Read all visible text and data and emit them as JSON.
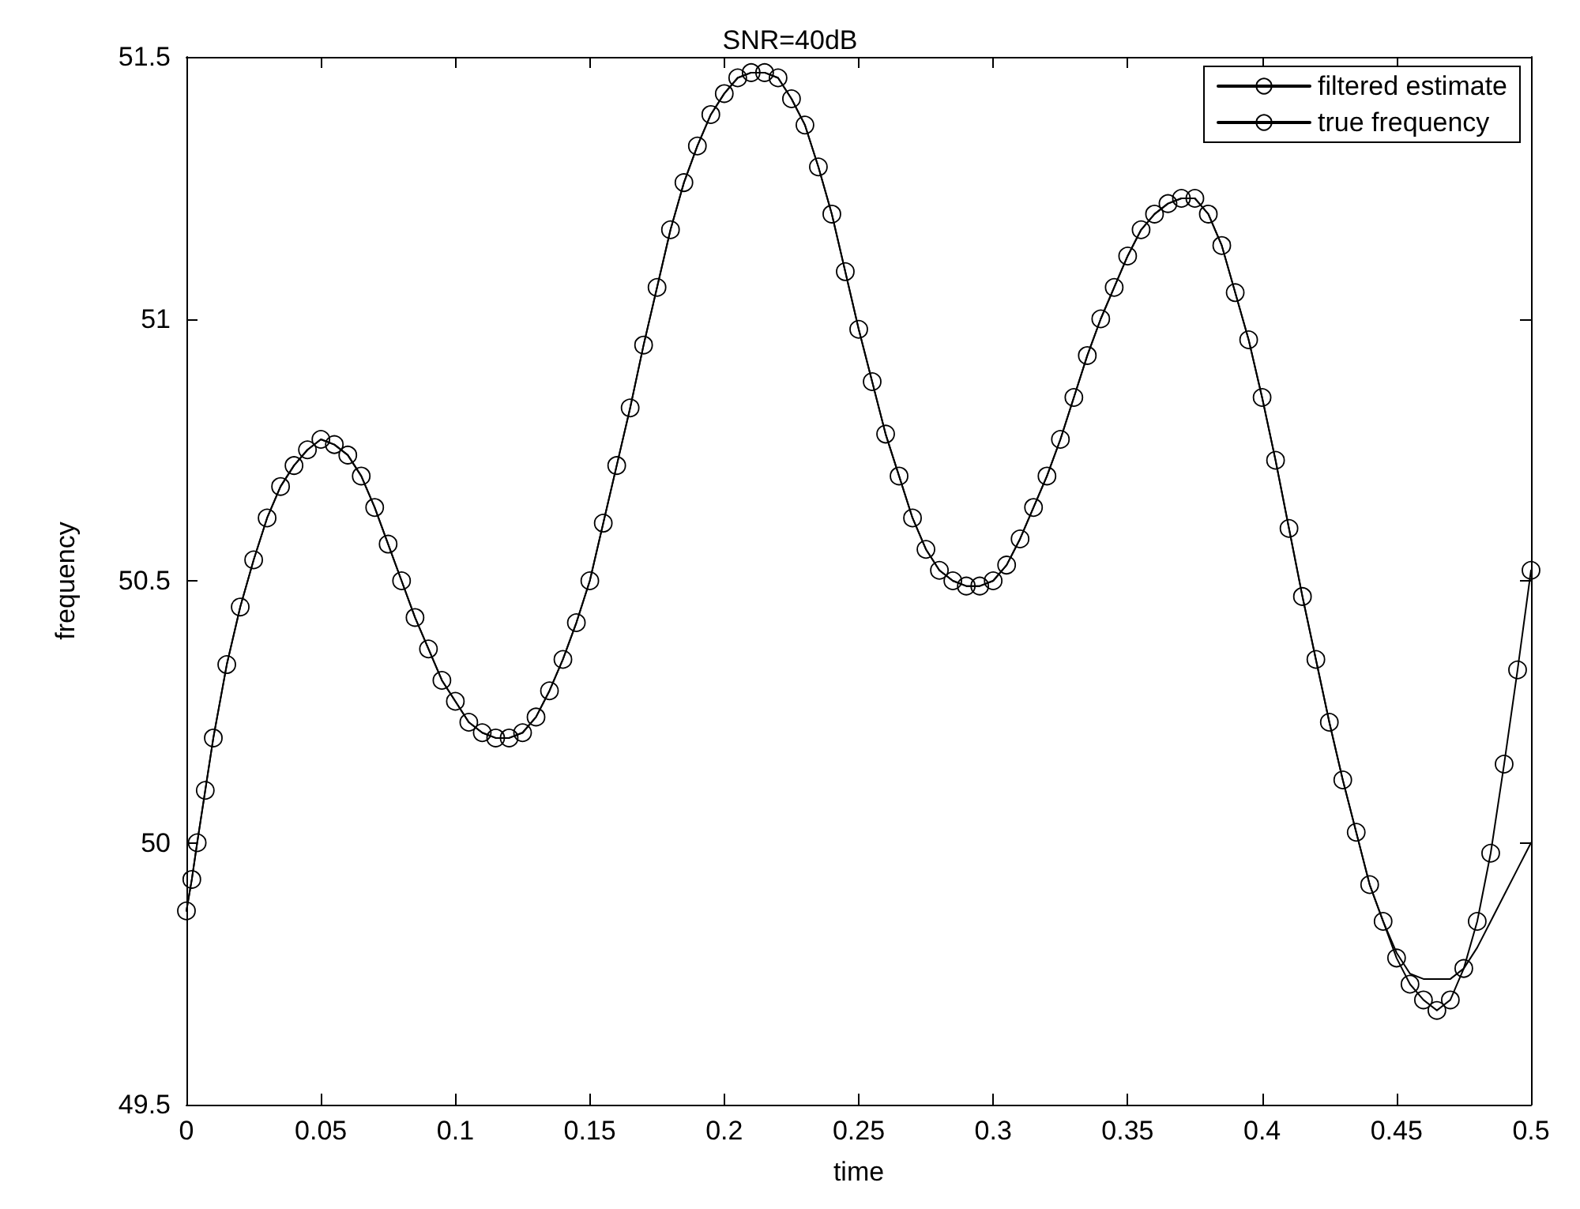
{
  "chart_data": {
    "type": "line",
    "title": "SNR=40dB",
    "xlabel": "time",
    "ylabel": "frequency",
    "x": [
      0,
      0.002,
      0.004,
      0.007,
      0.01,
      0.015,
      0.02,
      0.025,
      0.03,
      0.035,
      0.04,
      0.045,
      0.05,
      0.055,
      0.06,
      0.065,
      0.07,
      0.075,
      0.08,
      0.085,
      0.09,
      0.095,
      0.1,
      0.105,
      0.11,
      0.115,
      0.12,
      0.125,
      0.13,
      0.135,
      0.14,
      0.145,
      0.15,
      0.155,
      0.16,
      0.165,
      0.17,
      0.175,
      0.18,
      0.185,
      0.19,
      0.195,
      0.2,
      0.205,
      0.21,
      0.215,
      0.22,
      0.225,
      0.23,
      0.235,
      0.24,
      0.245,
      0.25,
      0.255,
      0.26,
      0.265,
      0.27,
      0.275,
      0.28,
      0.285,
      0.29,
      0.295,
      0.3,
      0.305,
      0.31,
      0.315,
      0.32,
      0.325,
      0.33,
      0.335,
      0.34,
      0.345,
      0.35,
      0.355,
      0.36,
      0.365,
      0.37,
      0.375,
      0.38,
      0.385,
      0.39,
      0.395,
      0.4,
      0.405,
      0.41,
      0.415,
      0.42,
      0.425,
      0.43,
      0.435,
      0.44,
      0.445,
      0.45,
      0.455,
      0.46,
      0.465,
      0.47,
      0.475,
      0.48,
      0.485,
      0.49,
      0.495,
      0.5
    ],
    "series": [
      {
        "name": "filtered estimate",
        "color": "#000000",
        "marker": "circle",
        "values": [
          49.87,
          49.93,
          50.0,
          50.1,
          50.2,
          50.34,
          50.45,
          50.54,
          50.62,
          50.68,
          50.72,
          50.75,
          50.77,
          50.76,
          50.74,
          50.7,
          50.64,
          50.57,
          50.5,
          50.43,
          50.37,
          50.31,
          50.27,
          50.23,
          50.21,
          50.2,
          50.2,
          50.21,
          50.24,
          50.29,
          50.35,
          50.42,
          50.5,
          50.61,
          50.72,
          50.83,
          50.95,
          51.06,
          51.17,
          51.26,
          51.33,
          51.39,
          51.43,
          51.46,
          51.47,
          51.47,
          51.46,
          51.42,
          51.37,
          51.29,
          51.2,
          51.09,
          50.98,
          50.88,
          50.78,
          50.7,
          50.62,
          50.56,
          50.52,
          50.5,
          50.49,
          50.49,
          50.5,
          50.53,
          50.58,
          50.64,
          50.7,
          50.77,
          50.85,
          50.93,
          51.0,
          51.06,
          51.12,
          51.17,
          51.2,
          51.22,
          51.23,
          51.23,
          51.2,
          51.14,
          51.05,
          50.96,
          50.85,
          50.73,
          50.6,
          50.47,
          50.35,
          50.23,
          50.12,
          50.02,
          49.92,
          49.85,
          49.78,
          49.73,
          49.7,
          49.68,
          49.7,
          49.76,
          49.85,
          49.98,
          50.15,
          50.33,
          50.52
        ]
      },
      {
        "name": "true frequency",
        "color": "#000000",
        "marker": "none",
        "values": [
          49.87,
          49.93,
          50.0,
          50.1,
          50.2,
          50.34,
          50.45,
          50.54,
          50.62,
          50.68,
          50.72,
          50.75,
          50.77,
          50.76,
          50.74,
          50.7,
          50.64,
          50.57,
          50.5,
          50.43,
          50.37,
          50.31,
          50.27,
          50.23,
          50.21,
          50.2,
          50.2,
          50.21,
          50.24,
          50.29,
          50.35,
          50.42,
          50.5,
          50.61,
          50.72,
          50.83,
          50.95,
          51.06,
          51.17,
          51.26,
          51.33,
          51.39,
          51.43,
          51.46,
          51.47,
          51.47,
          51.46,
          51.42,
          51.37,
          51.29,
          51.2,
          51.09,
          50.98,
          50.88,
          50.78,
          50.7,
          50.62,
          50.56,
          50.52,
          50.5,
          50.49,
          50.49,
          50.5,
          50.53,
          50.58,
          50.64,
          50.7,
          50.77,
          50.85,
          50.93,
          51.0,
          51.06,
          51.12,
          51.17,
          51.2,
          51.22,
          51.23,
          51.23,
          51.2,
          51.14,
          51.05,
          50.96,
          50.85,
          50.73,
          50.6,
          50.47,
          50.35,
          50.23,
          50.12,
          50.02,
          49.92,
          49.85,
          49.79,
          49.75,
          49.74,
          49.74,
          49.74,
          49.76,
          49.8,
          49.85,
          49.9,
          49.95,
          50.0
        ]
      }
    ],
    "xlim": [
      0,
      0.5
    ],
    "xticks": [
      0,
      0.05,
      0.1,
      0.15,
      0.2,
      0.25,
      0.3,
      0.35,
      0.4,
      0.45,
      0.5
    ],
    "ylim": [
      49.5,
      51.5
    ],
    "yticks": [
      49.5,
      50,
      50.5,
      51,
      51.5
    ],
    "grid": false,
    "legend": "top right",
    "line_style": "solid"
  }
}
